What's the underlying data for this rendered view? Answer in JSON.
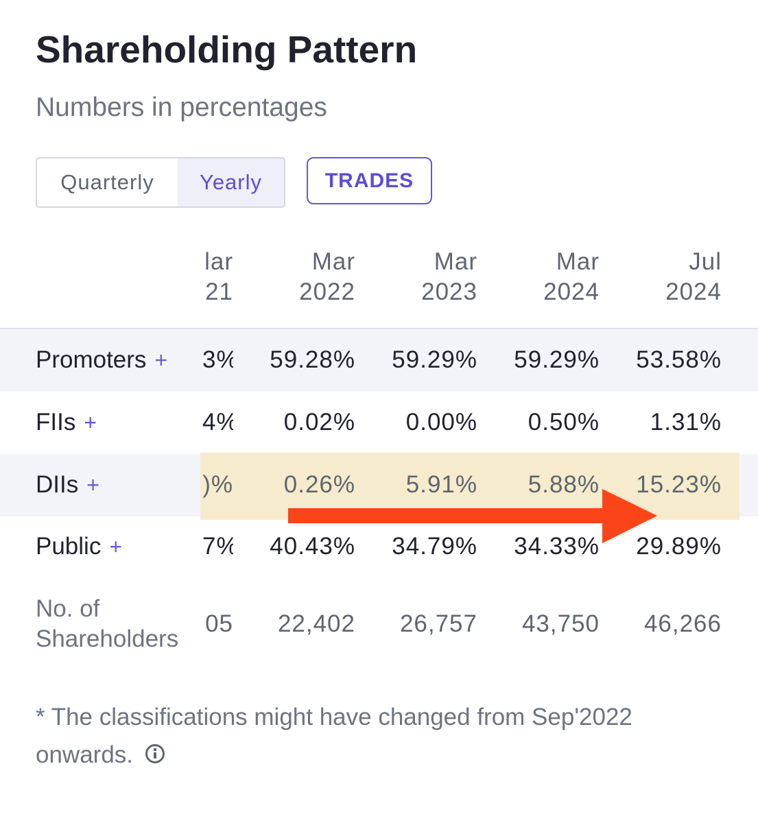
{
  "header": {
    "title": "Shareholding Pattern",
    "subtitle": "Numbers in percentages"
  },
  "toggle": {
    "quarterly_label": "Quarterly",
    "yearly_label": "Yearly",
    "selected": "Yearly"
  },
  "trades_button": {
    "label": "TRADES"
  },
  "table": {
    "columns": [
      {
        "month": "lar",
        "year": "21"
      },
      {
        "month": "Mar",
        "year": "2022"
      },
      {
        "month": "Mar",
        "year": "2023"
      },
      {
        "month": "Mar",
        "year": "2024"
      },
      {
        "month": "Jul",
        "year": "2024"
      }
    ],
    "rows": [
      {
        "label": "Promoters",
        "plus": "+",
        "values": [
          "3%",
          "59.28%",
          "59.29%",
          "59.29%",
          "53.58%"
        ]
      },
      {
        "label": "FIIs",
        "plus": "+",
        "values": [
          "4%",
          "0.02%",
          "0.00%",
          "0.50%",
          "1.31%"
        ]
      },
      {
        "label": "DIIs",
        "plus": "+",
        "values": ")%",
        "values_list": [
          ")%",
          "0.26%",
          "5.91%",
          "5.88%",
          "15.23%"
        ]
      },
      {
        "label": "Public",
        "plus": "+",
        "values": [
          "7%",
          "40.43%",
          "34.79%",
          "34.33%",
          "29.89%"
        ]
      }
    ],
    "shareholders": {
      "label_line1": "No. of",
      "label_line2": "Shareholders",
      "values": ")5",
      "values_list": [
        "05",
        "22,402",
        "26,757",
        "43,750",
        "46,266"
      ]
    }
  },
  "footnote": {
    "line1": "* The classifications might have changed from Sep'2022",
    "line2": "onwards."
  },
  "colors": {
    "accent": "#5c4cd6",
    "highlight": "#f6eac9",
    "arrow": "#fb4418",
    "row_shade": "#f3f4f9"
  }
}
